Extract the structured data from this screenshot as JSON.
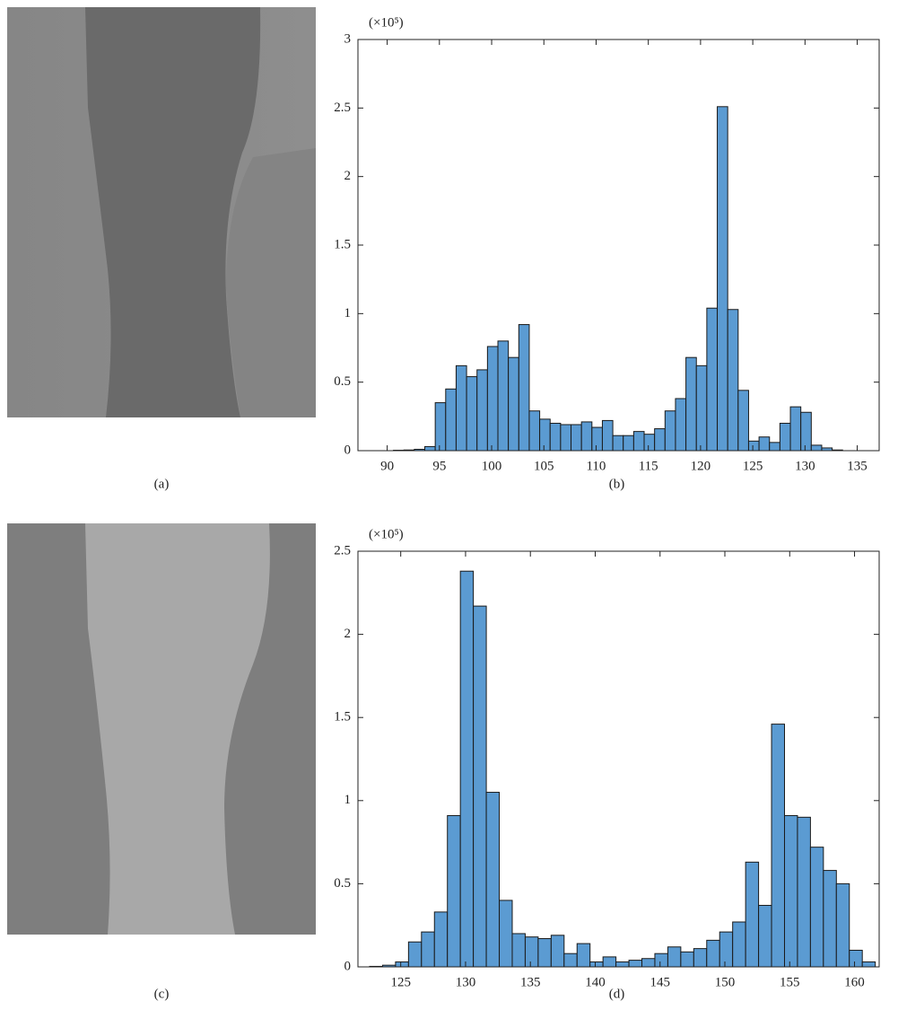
{
  "image_captions": [
    "(a)",
    "(c)"
  ],
  "chart_data": [
    {
      "type": "histogram",
      "caption": "(b)",
      "y_multiplier": "(×10⁵)",
      "color": "#5b9bd2",
      "bins": [
        90.6,
        91.6,
        92.6,
        93.6,
        94.6,
        95.6,
        96.6,
        97.6,
        98.6,
        99.6,
        100.6,
        101.6,
        102.6,
        103.6,
        104.6,
        105.6,
        106.6,
        107.6,
        108.6,
        109.6,
        110.6,
        111.6,
        112.6,
        113.6,
        114.6,
        115.6,
        116.6,
        117.6,
        118.6,
        119.6,
        120.6,
        121.6,
        122.6,
        123.6,
        124.6,
        125.6,
        126.6,
        127.6,
        128.6,
        129.6,
        130.6,
        131.6,
        132.6,
        133.6
      ],
      "values": [
        0.003,
        0.005,
        0.01,
        0.03,
        0.35,
        0.45,
        0.62,
        0.54,
        0.59,
        0.76,
        0.8,
        0.68,
        0.92,
        0.29,
        0.23,
        0.2,
        0.19,
        0.19,
        0.21,
        0.17,
        0.22,
        0.11,
        0.11,
        0.14,
        0.12,
        0.16,
        0.29,
        0.38,
        0.68,
        0.62,
        1.04,
        2.51,
        1.03,
        0.44,
        0.07,
        0.1,
        0.06,
        0.2,
        0.32,
        0.28,
        0.04,
        0.02,
        0.005
      ],
      "xlim": [
        87.2,
        137.1
      ],
      "ylim": [
        0,
        3
      ],
      "xticks": [
        90,
        95,
        100,
        105,
        110,
        115,
        120,
        125,
        130,
        135
      ],
      "yticks": [
        0,
        0.5,
        1,
        1.5,
        2,
        2.5,
        3
      ]
    },
    {
      "type": "histogram",
      "caption": "(d)",
      "y_multiplier": "(×10⁵)",
      "color": "#5b9bd2",
      "bins": [
        122.6,
        123.6,
        124.6,
        125.6,
        126.6,
        127.6,
        128.6,
        129.6,
        130.6,
        131.6,
        132.6,
        133.6,
        134.6,
        135.6,
        136.6,
        137.6,
        138.6,
        139.6,
        140.6,
        141.6,
        142.6,
        143.6,
        144.6,
        145.6,
        146.6,
        147.6,
        148.6,
        149.6,
        150.6,
        151.6,
        152.6,
        153.6,
        154.6,
        155.6,
        156.6,
        157.6,
        158.6,
        159.6,
        160.6,
        161.6
      ],
      "values": [
        0.003,
        0.01,
        0.03,
        0.15,
        0.21,
        0.33,
        0.91,
        2.38,
        2.17,
        1.05,
        0.4,
        0.2,
        0.18,
        0.17,
        0.19,
        0.08,
        0.14,
        0.03,
        0.06,
        0.03,
        0.04,
        0.05,
        0.08,
        0.12,
        0.09,
        0.11,
        0.16,
        0.21,
        0.27,
        0.63,
        0.37,
        1.46,
        0.91,
        0.9,
        0.72,
        0.58,
        0.5,
        0.1,
        0.03
      ],
      "xlim": [
        121.7,
        161.9
      ],
      "ylim": [
        0,
        2.5
      ],
      "xticks": [
        125,
        130,
        135,
        140,
        145,
        150,
        155,
        160
      ],
      "yticks": [
        0,
        0.5,
        1,
        1.5,
        2,
        2.5
      ]
    }
  ]
}
